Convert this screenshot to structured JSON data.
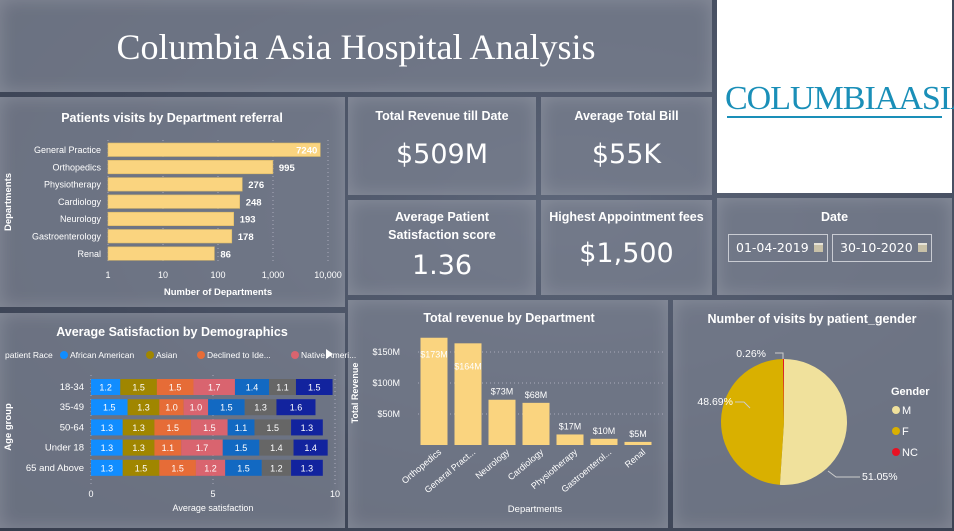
{
  "header": {
    "title": "Columbia Asia Hospital Analysis",
    "logo_text": "COLUMBIAASIA"
  },
  "kpis": {
    "total_revenue": {
      "label": "Total Revenue till Date",
      "value": "$509M"
    },
    "avg_bill": {
      "label": "Average Total Bill",
      "value": "$55K"
    },
    "satisfaction": {
      "label": "Average Patient Satisfaction score",
      "value": "1.36"
    },
    "highest_fee": {
      "label": "Highest Appointment fees",
      "value": "$1,500"
    }
  },
  "date_filter": {
    "label": "Date",
    "start": "01-04-2019",
    "end": "30-10-2020",
    "icon": "calendar-icon"
  },
  "chart_data": [
    {
      "type": "bar",
      "orientation": "horizontal",
      "title": "Patients visits by Department referral",
      "xlabel": "Number of Departments",
      "ylabel": "Departments",
      "xscale": "log",
      "xlim": [
        1,
        10000
      ],
      "xticks": [
        "1",
        "10",
        "100",
        "1,000",
        "10,000"
      ],
      "categories": [
        "General Practice",
        "Orthopedics",
        "Physiotherapy",
        "Cardiology",
        "Neurology",
        "Gastroenterology",
        "Renal"
      ],
      "values": [
        7240,
        995,
        276,
        248,
        193,
        178,
        86
      ],
      "color": "#FAD47F"
    },
    {
      "type": "bar",
      "orientation": "horizontal",
      "stacked": true,
      "title": "Average Satisfaction by Demographics",
      "xlabel": "Average satisfaction",
      "ylabel": "Age group",
      "xlim": [
        0,
        10
      ],
      "xticks": [
        "0",
        "5",
        "10"
      ],
      "legend_title": "patient Race",
      "legend": [
        "African American",
        "Asian",
        "Declined to Ide...",
        "Native Ameri..."
      ],
      "categories": [
        "18-34",
        "35-49",
        "50-64",
        "Under 18",
        "65 and Above"
      ],
      "colors": [
        "#118DFF",
        "#A08600",
        "#E66C37",
        "#D9646F",
        "#1269C2",
        "#666666",
        "#12239E"
      ],
      "values": [
        [
          1.2,
          1.5,
          1.5,
          1.7,
          1.4,
          1.1,
          1.5
        ],
        [
          1.5,
          1.3,
          1.0,
          1.0,
          1.5,
          1.3,
          1.6
        ],
        [
          1.3,
          1.3,
          1.5,
          1.5,
          1.1,
          1.5,
          1.3
        ],
        [
          1.3,
          1.3,
          1.1,
          1.7,
          1.5,
          1.4,
          1.4
        ],
        [
          1.3,
          1.5,
          1.5,
          1.2,
          1.5,
          1.2,
          1.3
        ]
      ]
    },
    {
      "type": "bar",
      "title": "Total revenue by Department",
      "xlabel": "Departments",
      "ylabel": "Total Revenue",
      "ylim": [
        0,
        180
      ],
      "yticks": [
        "$50M",
        "$100M",
        "$150M"
      ],
      "categories": [
        "Orthopedics",
        "General Pract...",
        "Neurology",
        "Cardiology",
        "Physiotherapy",
        "Gastroenterol...",
        "Renal"
      ],
      "values": [
        173,
        164,
        73,
        68,
        17,
        10,
        5
      ],
      "labels": [
        "$173M",
        "$164M",
        "$73M",
        "$68M",
        "$17M",
        "$10M",
        "$5M"
      ],
      "color": "#FAD47F"
    },
    {
      "type": "pie",
      "title": "Number of visits by patient_gender",
      "legend_title": "Gender",
      "categories": [
        "M",
        "F",
        "NC"
      ],
      "values": [
        51.05,
        48.69,
        0.26
      ],
      "labels": [
        "51.05%",
        "48.69%",
        "0.26%"
      ],
      "colors": [
        "#F0E19C",
        "#D9B000",
        "#E81123"
      ]
    }
  ]
}
